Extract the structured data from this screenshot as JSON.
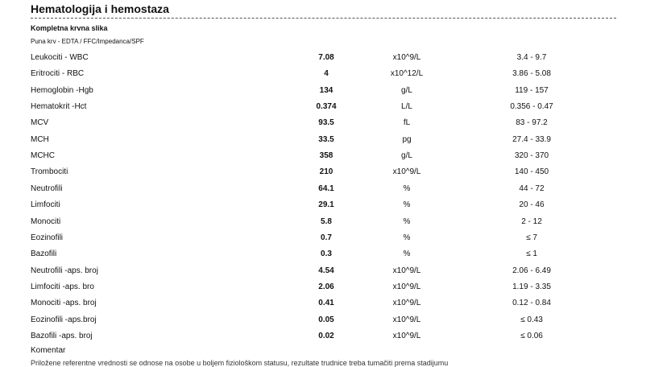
{
  "header": {
    "title": "Hematologija i hemostaza"
  },
  "section": {
    "title": "Kompletna krvna slika",
    "subtitle": "Puna krv - EDTA / FFC/Impedanca/SPF"
  },
  "table": {
    "rows": [
      [
        "Leukociti - WBC",
        "7.08",
        "x10^9/L",
        "3.4 - 9.7"
      ],
      [
        "Eritrociti - RBC",
        "4",
        "x10^12/L",
        "3.86 - 5.08"
      ],
      [
        "Hemoglobin -Hgb",
        "134",
        "g/L",
        "119 - 157"
      ],
      [
        "Hematokrit -Hct",
        "0.374",
        "L/L",
        "0.356 - 0.47"
      ],
      [
        "MCV",
        "93.5",
        "fL",
        "83 - 97.2"
      ],
      [
        "MCH",
        "33.5",
        "pg",
        "27.4 - 33.9"
      ],
      [
        "MCHC",
        "358",
        "g/L",
        "320 - 370"
      ],
      [
        "Trombociti",
        "210",
        "x10^9/L",
        "140 - 450"
      ],
      [
        "Neutrofili",
        "64.1",
        "%",
        "44 - 72"
      ],
      [
        "Limfociti",
        "29.1",
        "%",
        "20 - 46"
      ],
      [
        "Monociti",
        "5.8",
        "%",
        "2 - 12"
      ],
      [
        "Eozinofili",
        "0.7",
        "%",
        "≤ 7"
      ],
      [
        "Bazofili",
        "0.3",
        "%",
        "≤ 1"
      ],
      [
        "Neutrofili -aps. broj",
        "4.54",
        "x10^9/L",
        "2.06 - 6.49"
      ],
      [
        "Limfociti -aps. bro",
        "2.06",
        "x10^9/L",
        "1.19 - 3.35"
      ],
      [
        "Monociti -aps. broj",
        "0.41",
        "x10^9/L",
        "0.12 - 0.84"
      ],
      [
        "Eozinofili -aps.broj",
        "0.05",
        "x10^9/L",
        "≤ 0.43"
      ],
      [
        "Bazofili -aps. broj",
        "0.02",
        "x10^9/L",
        "≤ 0.06"
      ]
    ]
  },
  "footer": {
    "comment_label": "Komentar",
    "note": "Priložene referentne vrednosti se odnose na osobe u boljem fiziološkom statusu, rezultate trudnice treba tumačiti prema stadijumu"
  }
}
